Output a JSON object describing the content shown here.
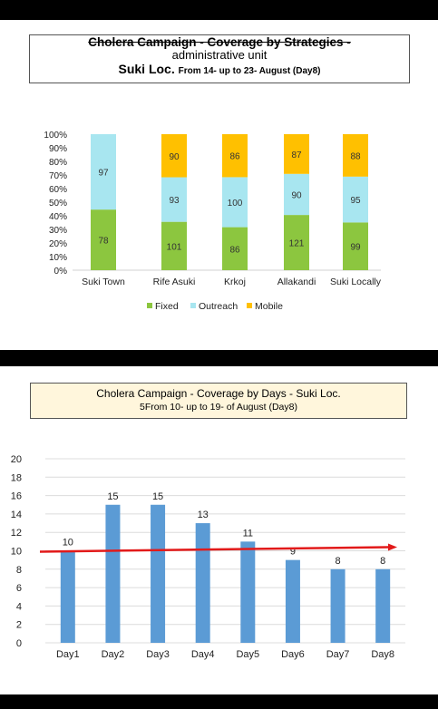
{
  "chart_data": [
    {
      "type": "bar",
      "stacked": "percent",
      "title_line1": "Cholera Campaign - Coverage by Strategies -",
      "title_line2": "administrative unit",
      "title_line3_main": "Suki Loc.",
      "title_line3_small": "From 14- up to 23- August (Day8)",
      "categories": [
        "Suki Town",
        "Rife Asuki",
        "Krkoj",
        "Allakandi",
        "Suki Locally"
      ],
      "series": [
        {
          "name": "Fixed",
          "color": "#8cc63f",
          "values": [
            78,
            101,
            86,
            121,
            99
          ]
        },
        {
          "name": "Outreach",
          "color": "#a8e6f0",
          "values": [
            97,
            93,
            100,
            90,
            95
          ]
        },
        {
          "name": "Mobile",
          "color": "#ffc000",
          "values": [
            0,
            90,
            86,
            87,
            88
          ]
        }
      ],
      "y_ticks": [
        "0%",
        "10%",
        "20%",
        "30%",
        "40%",
        "50%",
        "60%",
        "70%",
        "80%",
        "90%",
        "100%"
      ],
      "ylim": [
        0,
        100
      ],
      "legend_position": "bottom",
      "grid": false
    },
    {
      "type": "bar",
      "title_line1": "Cholera Campaign - Coverage by Days - Suki Loc.",
      "title_line2_main": "5From 10- up to 19- of August",
      "title_line2_small": "(Day8)",
      "categories": [
        "Day1",
        "Day2",
        "Day3",
        "Day4",
        "Day5",
        "Day6",
        "Day7",
        "Day8"
      ],
      "values": [
        10,
        15,
        15,
        13,
        11,
        9,
        8,
        8
      ],
      "bar_color": "#5b9bd5",
      "reference_line": {
        "value": 10,
        "color": "#e21a1a"
      },
      "ylim": [
        0,
        20
      ],
      "y_ticks": [
        "0",
        "2",
        "4",
        "6",
        "8",
        "10",
        "12",
        "14",
        "16",
        "18",
        "20"
      ],
      "grid": true
    }
  ]
}
